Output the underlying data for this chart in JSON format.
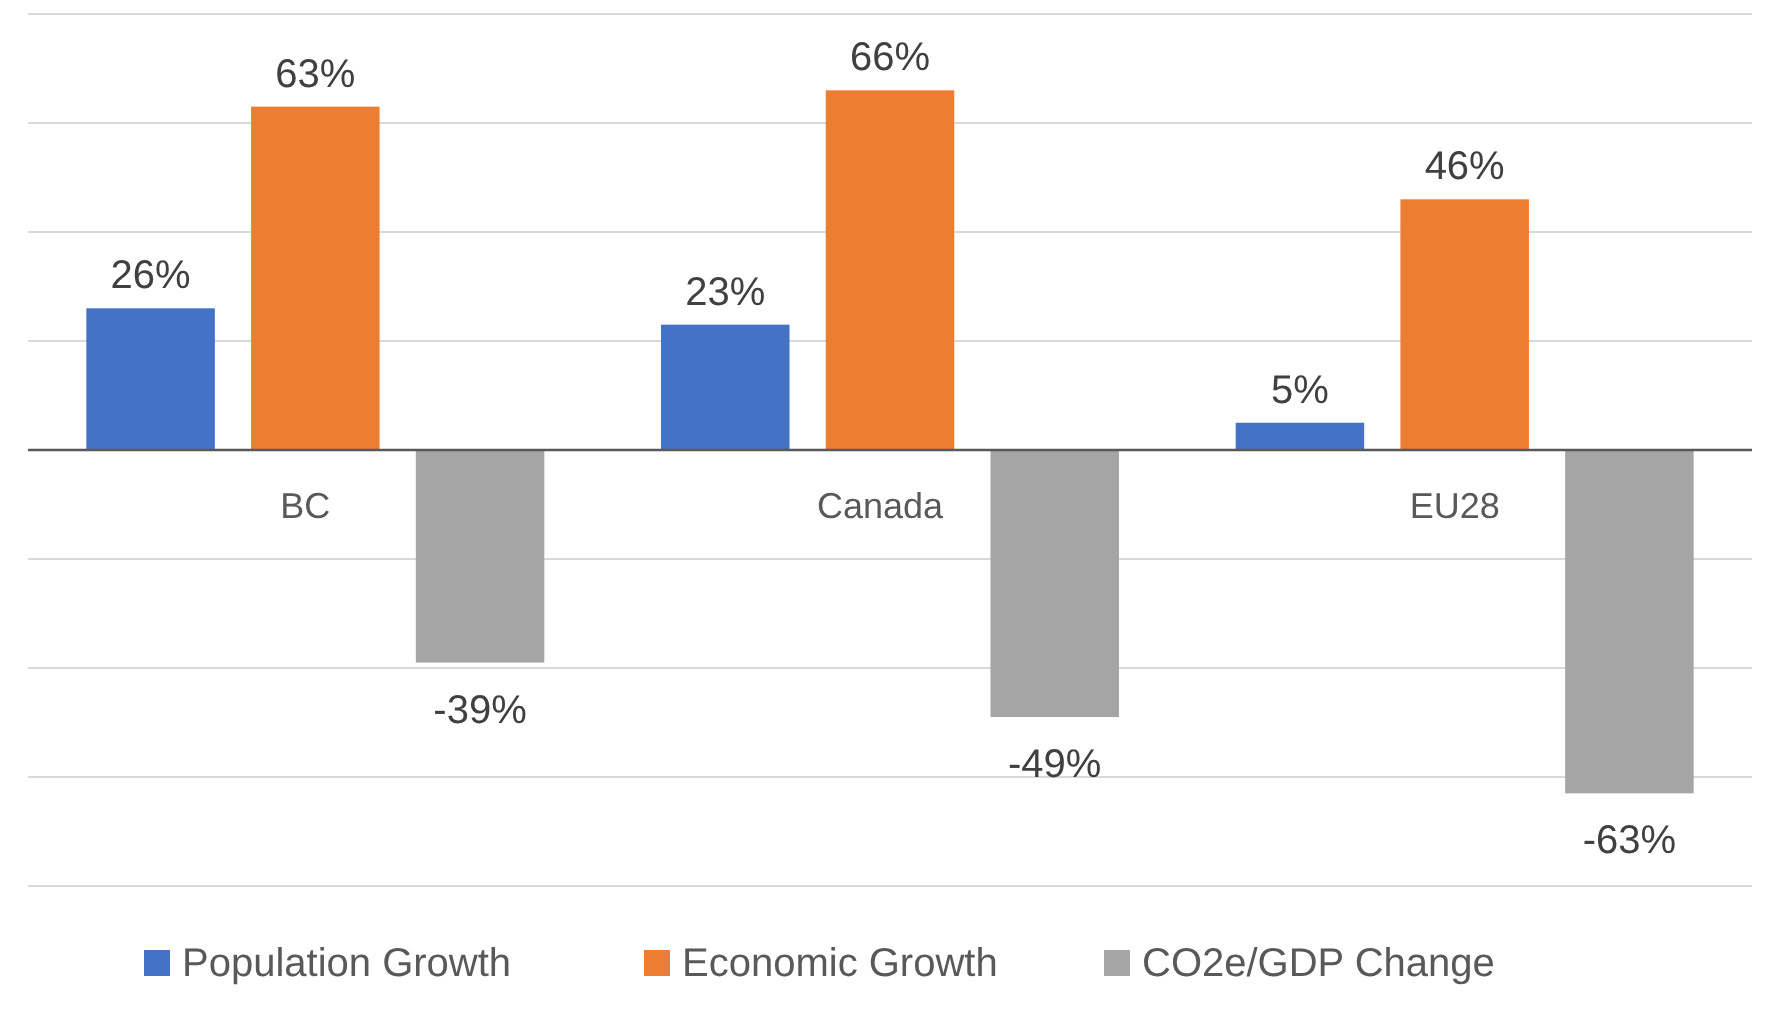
{
  "chart_data": {
    "type": "bar",
    "categories": [
      "BC",
      "Canada",
      "EU28"
    ],
    "series": [
      {
        "name": "Population Growth",
        "color": "#4472c4",
        "values": [
          26,
          23,
          5
        ],
        "value_labels": [
          "26%",
          "23%",
          "5%"
        ]
      },
      {
        "name": "Economic Growth",
        "color": "#ed7d31",
        "values": [
          63,
          66,
          46
        ],
        "value_labels": [
          "63%",
          "66%",
          "46%"
        ]
      },
      {
        "name": "CO2e/GDP Change",
        "color": "#a5a5a5",
        "values": [
          -39,
          -49,
          -63
        ],
        "value_labels": [
          "-39%",
          "-49%",
          "-63%"
        ]
      }
    ],
    "ylim": [
      -80,
      80
    ],
    "yticks": [
      {
        "value": -80,
        "label": null
      },
      {
        "value": -60,
        "label": null
      },
      {
        "value": -40,
        "label": null
      },
      {
        "value": -20,
        "label": null
      },
      {
        "value": 0,
        "label": null
      },
      {
        "value": 20,
        "label": null
      },
      {
        "value": 40,
        "label": null
      },
      {
        "value": 60,
        "label": null
      },
      {
        "value": 80,
        "label": null
      }
    ],
    "tick_labels": "x",
    "grid": "y",
    "legend": "bottom"
  }
}
